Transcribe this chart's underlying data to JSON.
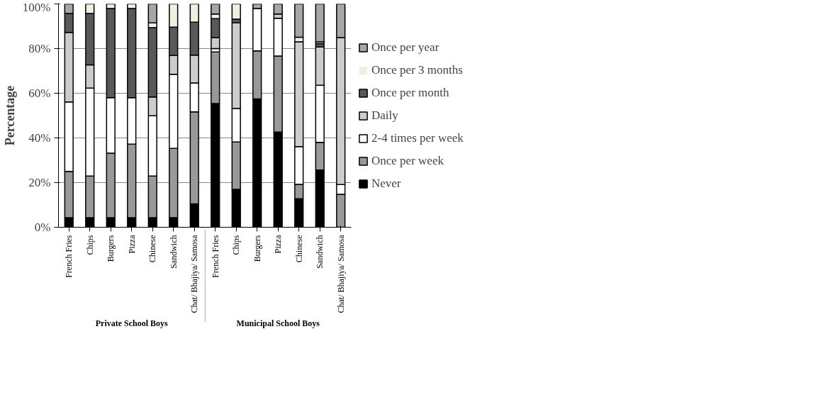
{
  "chart_data": {
    "type": "bar",
    "stacked": true,
    "ylabel": "Percentage",
    "categories": [
      "French Fries",
      "Chips",
      "Burgers",
      "Pizza",
      "Chinese",
      "Sandwich",
      "Chat/ Bhajiya/ Samosa",
      "French Fries",
      "Chips",
      "Burgers",
      "Pizza",
      "Chinese",
      "Sandwich",
      "Chat/ Bhajiya/ Samosa"
    ],
    "annotations": [
      "Private School Boys",
      "Municipal School Boys"
    ],
    "series": [
      {
        "name": "Never",
        "color": "#000000",
        "values": [
          4.3,
          4.3,
          4.3,
          4.3,
          4.3,
          4.3,
          10.5,
          55.4,
          17.0,
          57.5,
          42.6,
          12.8,
          25.6,
          0
        ]
      },
      {
        "name": "Once per week",
        "color": "#999999",
        "values": [
          20.7,
          18.6,
          28.9,
          32.9,
          18.6,
          31.0,
          41.2,
          23.1,
          21.2,
          21.5,
          34.1,
          6.4,
          12.4,
          14.8
        ]
      },
      {
        "name": "2-4 times per week",
        "color": "#ffffff",
        "values": [
          31.1,
          39.4,
          24.8,
          20.8,
          27.0,
          33.2,
          12.9,
          1.5,
          15.0,
          18.9,
          16.9,
          16.9,
          25.6,
          4.3
        ]
      },
      {
        "name": "Daily",
        "color": "#cccccc",
        "values": [
          31.1,
          10.4,
          0,
          0,
          8.4,
          8.4,
          12.5,
          4.9,
          38.3,
          0,
          1.9,
          46.9,
          17.1,
          65.8
        ]
      },
      {
        "name": "Once per month",
        "color": "#595959",
        "values": [
          8.5,
          23.0,
          39.9,
          39.9,
          31.1,
          12.7,
          14.7,
          8.5,
          1.7,
          0,
          0,
          0,
          1.5,
          0
        ]
      },
      {
        "name": "Once per 3 months",
        "color": "#f0f0e0",
        "values": [
          0,
          4.3,
          2.1,
          2.1,
          2.1,
          10.4,
          8.2,
          2.1,
          6.8,
          0,
          0,
          2.1,
          0.8,
          0
        ]
      },
      {
        "name": "Once per year",
        "color": "#a6a6a6",
        "values": [
          4.3,
          0,
          0,
          0,
          8.5,
          0,
          0,
          4.5,
          0,
          2.1,
          4.5,
          14.9,
          17.0,
          15.1
        ]
      }
    ],
    "ylim": [
      0,
      100
    ],
    "yticks": [
      {
        "value": 0,
        "label": "0%"
      },
      {
        "value": 20,
        "label": "20%"
      },
      {
        "value": 40,
        "label": "40%"
      },
      {
        "value": 60,
        "label": "60%"
      },
      {
        "value": 80,
        "label": "80%"
      },
      {
        "value": 100,
        "label": "100%"
      }
    ],
    "grid": "y",
    "legend": "right"
  }
}
